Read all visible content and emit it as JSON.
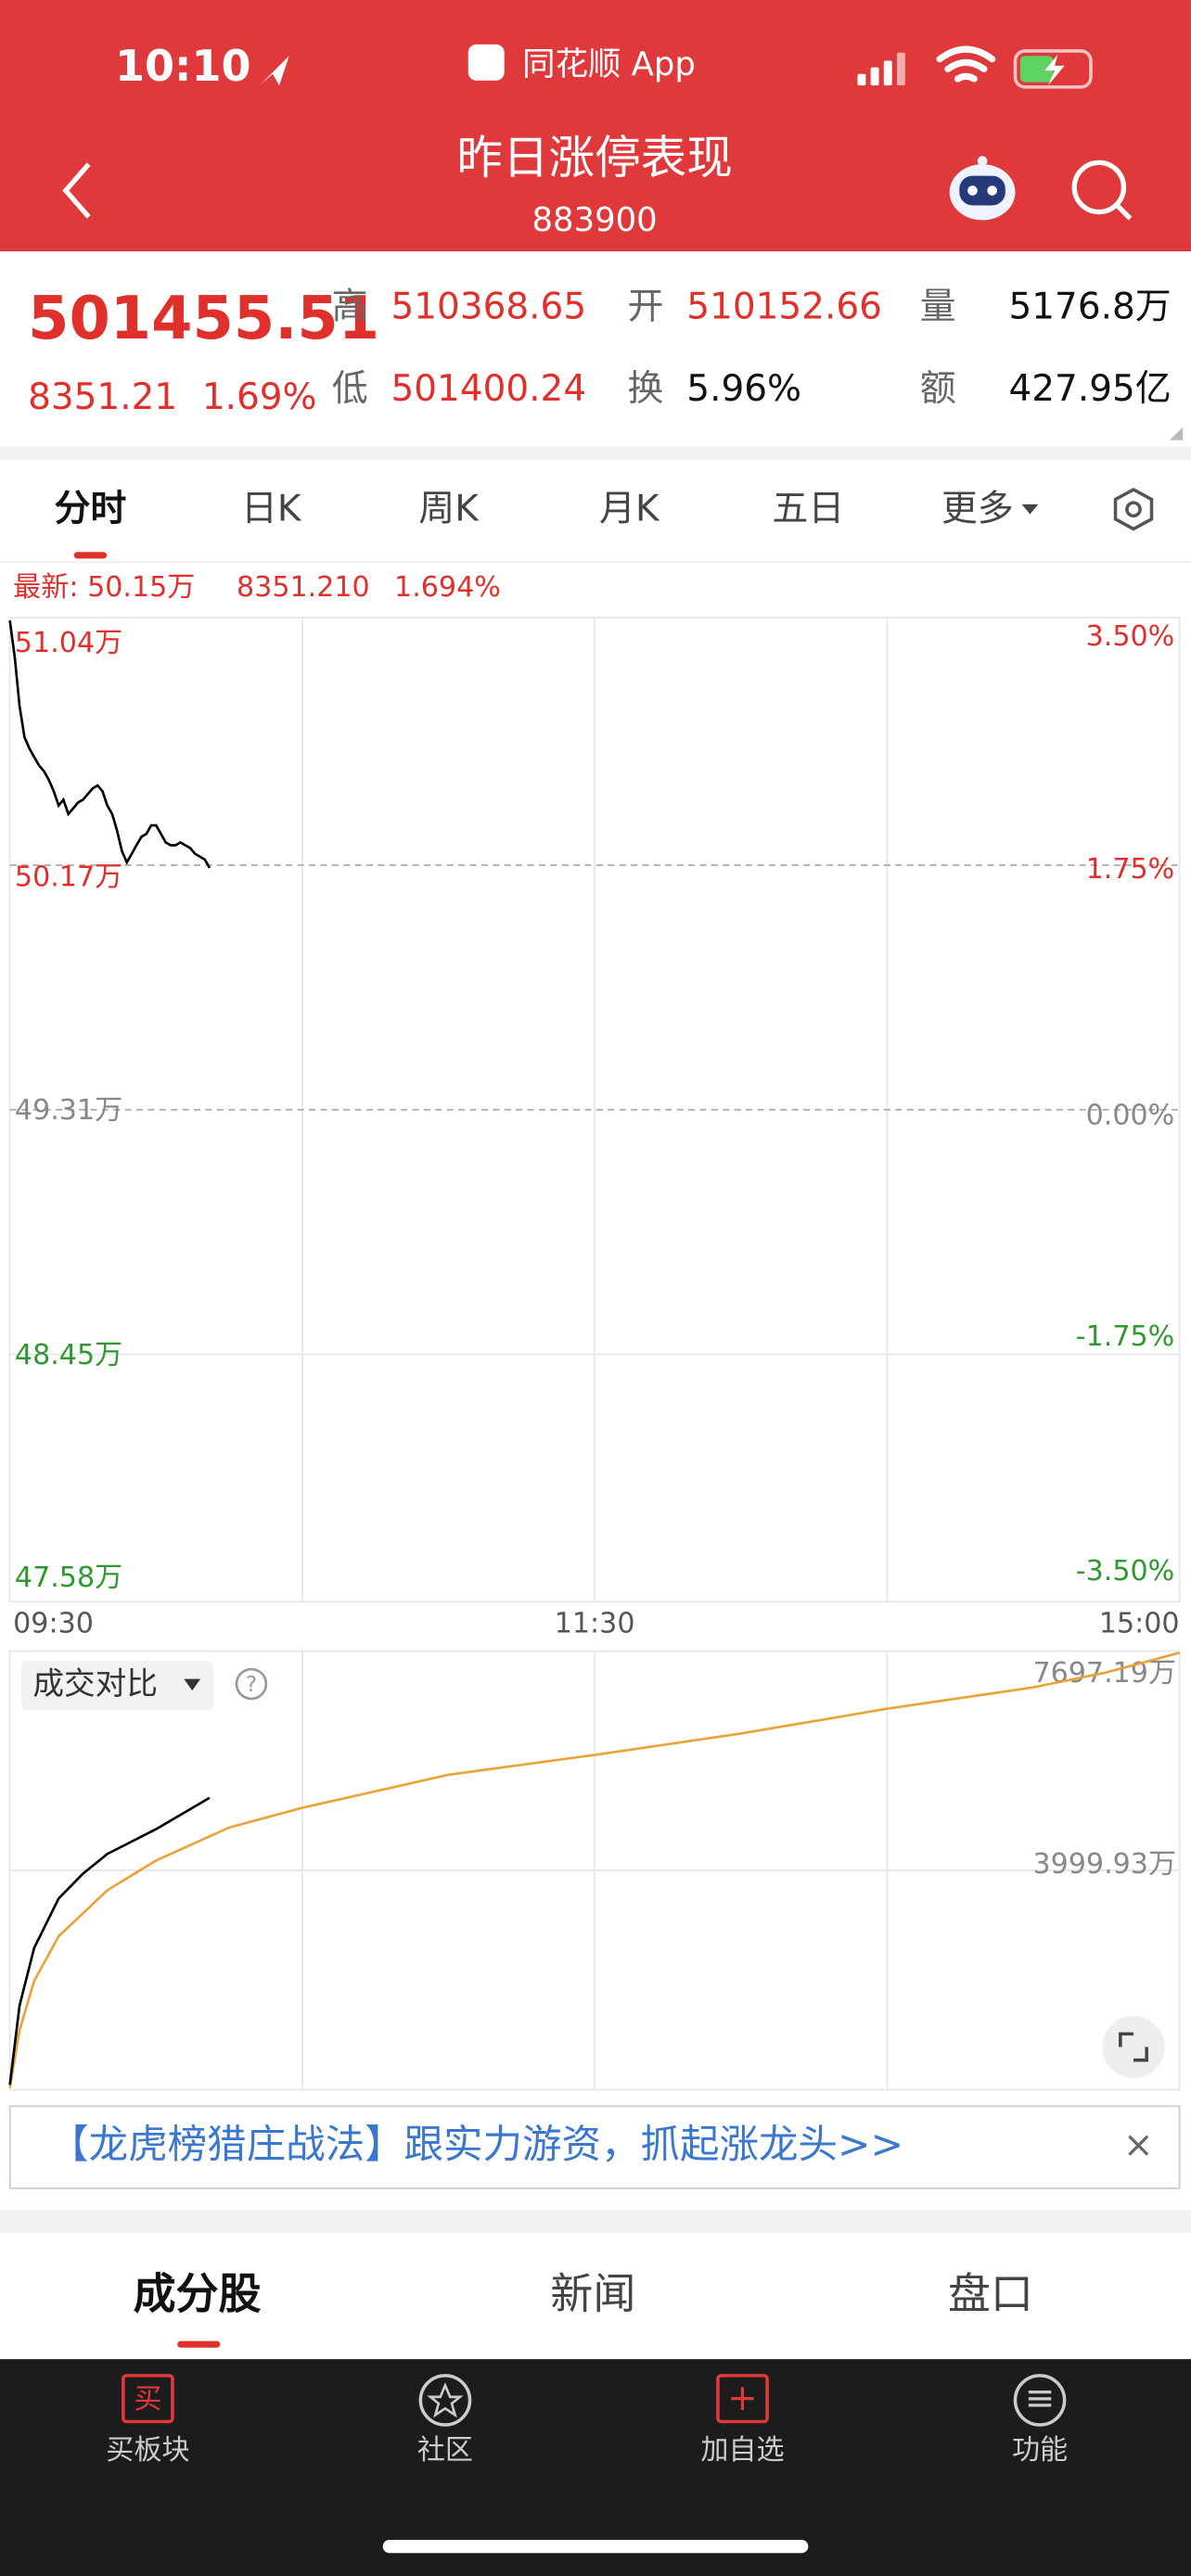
{
  "status_bar": {
    "time": "10:10",
    "app": "同花顺 App"
  },
  "header": {
    "title": "昨日涨停表现",
    "code": "883900"
  },
  "quote": {
    "price": "501455.51",
    "change": "8351.21",
    "change_pct": "1.69%",
    "fields": [
      {
        "label": "高",
        "value": "510368.65"
      },
      {
        "label": "开",
        "value": "510152.66"
      },
      {
        "label": "量",
        "value": "5176.8万"
      },
      {
        "label": "低",
        "value": "501400.24"
      },
      {
        "label": "换",
        "value": "5.96%"
      },
      {
        "label": "额",
        "value": "427.95亿"
      }
    ]
  },
  "tabs": [
    "分时",
    "日K",
    "周K",
    "月K",
    "五日",
    "更多"
  ],
  "price_chart": {
    "type": "line",
    "color": "#000000",
    "latest": [
      "最新: 50.15万",
      "8351.210",
      "1.694%"
    ],
    "x": [
      "09:30",
      "09:31",
      "09:32",
      "09:33",
      "09:34",
      "09:35",
      "09:36",
      "09:37",
      "09:38",
      "09:39",
      "09:40",
      "09:41",
      "09:42",
      "09:43",
      "09:44",
      "09:45",
      "09:46",
      "09:47",
      "09:48",
      "09:49",
      "09:50",
      "09:51",
      "09:52",
      "09:53",
      "09:54",
      "09:55",
      "09:56",
      "09:57",
      "09:58",
      "09:59",
      "10:00",
      "10:01",
      "10:02",
      "10:03",
      "10:04",
      "10:05",
      "10:06",
      "10:07",
      "10:08",
      "10:09",
      "10:10",
      "10:11"
    ],
    "values": [
      51.03,
      50.9,
      50.73,
      50.62,
      50.58,
      50.55,
      50.52,
      50.5,
      50.47,
      50.43,
      50.38,
      50.4,
      50.35,
      50.37,
      50.39,
      50.4,
      50.42,
      50.44,
      50.45,
      50.43,
      50.38,
      50.35,
      50.29,
      50.22,
      50.18,
      50.21,
      50.24,
      50.27,
      50.28,
      50.31,
      50.31,
      50.28,
      50.25,
      50.24,
      50.24,
      50.25,
      50.24,
      50.23,
      50.21,
      50.2,
      50.19,
      50.16
    ],
    "ylim": [
      47.58,
      51.04
    ],
    "yticks": [
      {
        "value": 51.04,
        "label": "51.04万"
      },
      {
        "value": 50.17,
        "label": "50.17万"
      },
      {
        "value": 49.31,
        "label": "49.31万"
      },
      {
        "value": 48.45,
        "label": "48.45万"
      },
      {
        "value": 47.58,
        "label": "47.58万"
      }
    ],
    "y2lim": [
      -3.5,
      3.5
    ],
    "y2ticks": [
      {
        "value": 3.5,
        "label": "3.50%"
      },
      {
        "value": 1.75,
        "label": "1.75%"
      },
      {
        "value": 0,
        "label": "0.00%"
      },
      {
        "value": -1.75,
        "label": "-1.75%"
      },
      {
        "value": -3.5,
        "label": "-3.50%"
      }
    ],
    "xticks": [
      "09:30",
      "11:30",
      "15:00"
    ]
  },
  "volume_chart": {
    "type": "line",
    "title": "成交对比",
    "help": "?",
    "ylim": [
      302.67,
      7697.19
    ],
    "yticks": [
      {
        "value": 3999.93,
        "label": "3999.93万"
      },
      {
        "value": 7697.19,
        "label": "7697.19万"
      }
    ],
    "series": [
      {
        "color": "#e8a33a",
        "x": [
          "09:30",
          "09:32",
          "09:35",
          "09:40",
          "09:50",
          "10:00",
          "10:15",
          "10:30",
          "11:00",
          "11:30",
          "13:30",
          "14:00",
          "14:30",
          "14:45",
          "15:00"
        ],
        "values": [
          330,
          1303,
          2137,
          2888,
          3666,
          4167,
          4723,
          5056,
          5612,
          5946,
          6307,
          6724,
          7086,
          7336,
          7669
        ]
      },
      {
        "color": "#000000",
        "x": [
          "09:30",
          "09:32",
          "09:35",
          "09:40",
          "09:45",
          "09:50",
          "10:00",
          "10:11"
        ],
        "values": [
          386,
          1720,
          2693,
          3527,
          3944,
          4278,
          4695,
          5223
        ]
      }
    ]
  },
  "ad": {
    "text": "【龙虎榜猎庄战法】跟实力游资，抓起涨龙头>>",
    "close": "×"
  },
  "bottom_tabs": [
    "成分股",
    "新闻",
    "盘口"
  ],
  "nav": [
    {
      "icon": "买",
      "label": "买板块"
    },
    {
      "icon": "",
      "label": "社区"
    },
    {
      "icon": "+",
      "label": "加自选"
    },
    {
      "icon": "≡",
      "label": "功能"
    }
  ]
}
